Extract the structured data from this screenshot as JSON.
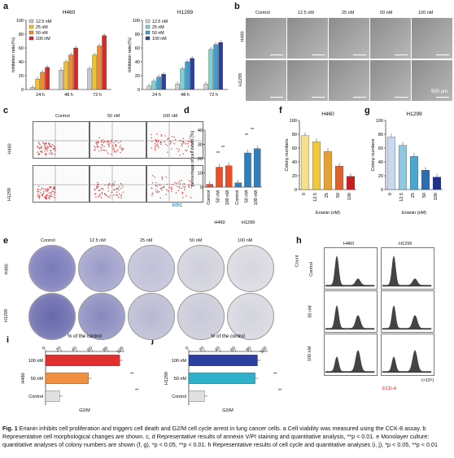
{
  "panels": {
    "a": {
      "label": "a",
      "charts": [
        {
          "title": "H460",
          "ylabel": "Inhibition ratio(%)",
          "yticks": [
            "0",
            "20",
            "40",
            "60",
            "80",
            "100"
          ],
          "legend": [
            "12.5 nM",
            "25 nM",
            "50 nM",
            "100 nM"
          ],
          "xgroups": [
            "24 h",
            "48 h",
            "72 h"
          ]
        },
        {
          "title": "H1299",
          "ylabel": "Inhibition ratio(%)",
          "yticks": [
            "0",
            "20",
            "40",
            "60",
            "80",
            "100"
          ],
          "legend": [
            "12.5 nM",
            "25 nM",
            "50 nM",
            "100 nM"
          ],
          "xgroups": [
            "24 h",
            "48 h",
            "72 h"
          ]
        }
      ]
    },
    "b": {
      "label": "b",
      "cols": [
        "Control",
        "12.5 nM",
        "25 nM",
        "50 nM",
        "100 nM"
      ],
      "rows": [
        "H460",
        "H1299"
      ],
      "scale": "500 μm"
    },
    "c": {
      "label": "c",
      "cols": [
        "Control",
        "50 nM",
        "100 nM"
      ],
      "rows": [
        "H460",
        "H1299"
      ],
      "xaxis": "FITC"
    },
    "d": {
      "label": "d",
      "ylabel": "percentage of cell death (%)",
      "yticks": [
        "0",
        "10",
        "20",
        "30",
        "40"
      ],
      "xticks": [
        "Control",
        "50 nM",
        "100 nM",
        "Control",
        "50 nM",
        "100 nM"
      ],
      "groups": [
        "H460",
        "H1299"
      ],
      "sig": [
        "**",
        "**",
        "**",
        "**"
      ]
    },
    "f": {
      "label": "f",
      "title": "H460",
      "ylabel": "Colony numbers",
      "yticks": [
        "0",
        "20",
        "40",
        "60",
        "80",
        "100"
      ],
      "xticks": [
        "0",
        "12.5",
        "25",
        "50",
        "100"
      ],
      "xlabel": "Erianin (nM)"
    },
    "g": {
      "label": "g",
      "title": "H1299",
      "ylabel": "Colony numbers",
      "yticks": [
        "0",
        "20",
        "40",
        "60",
        "80",
        "100"
      ],
      "xticks": [
        "0",
        "12.5",
        "25",
        "50",
        "100"
      ],
      "xlabel": "Erianin (nM)"
    },
    "e": {
      "label": "e",
      "cols": [
        "Control",
        "12.5 nM",
        "25 nM",
        "50 nM",
        "100 nM"
      ],
      "rows": [
        "H460",
        "H1299"
      ]
    },
    "h": {
      "label": "h",
      "cols": [
        "H460",
        "H1299"
      ],
      "rows": [
        "Control",
        "50 nM",
        "100 nM"
      ],
      "ylabel": "Count",
      "xlabel": "ECD-A",
      "unit": "(×10⁶)"
    },
    "i": {
      "label": "i",
      "title": "% of the control",
      "row_group": "H460",
      "xlabel": "G2/M",
      "bars": [
        "100 nM",
        "50 nM",
        "Control"
      ],
      "xticks": [
        "0",
        "20",
        "40",
        "60",
        "80",
        "100"
      ],
      "sig": [
        "**",
        "**"
      ]
    },
    "j": {
      "label": "j",
      "title": "% of the control",
      "row_group": "H1299",
      "xlabel": "G2/M",
      "bars": [
        "100 nM",
        "50 nM",
        "Control"
      ],
      "xticks": [
        "0",
        "20",
        "40",
        "60",
        "80",
        "100"
      ],
      "sig": [
        "**",
        "**"
      ]
    }
  },
  "chart_data": [
    {
      "type": "bar",
      "title": "H460",
      "ylabel": "Inhibition ratio(%)",
      "ylim": [
        0,
        100
      ],
      "categories": [
        "24 h",
        "48 h",
        "72 h"
      ],
      "series": [
        {
          "name": "12.5 nM",
          "values": [
            3,
            28,
            30
          ]
        },
        {
          "name": "25 nM",
          "values": [
            15,
            40,
            50
          ]
        },
        {
          "name": "50 nM",
          "values": [
            25,
            50,
            63
          ]
        },
        {
          "name": "100 nM",
          "values": [
            32,
            60,
            78
          ]
        }
      ]
    },
    {
      "type": "bar",
      "title": "H1299",
      "ylabel": "Inhibition ratio(%)",
      "ylim": [
        0,
        100
      ],
      "categories": [
        "24 h",
        "48 h",
        "72 h"
      ],
      "series": [
        {
          "name": "12.5 nM",
          "values": [
            5,
            8,
            8
          ]
        },
        {
          "name": "25 nM",
          "values": [
            12,
            30,
            58
          ]
        },
        {
          "name": "50 nM",
          "values": [
            18,
            40,
            65
          ]
        },
        {
          "name": "100 nM",
          "values": [
            22,
            45,
            68
          ]
        }
      ]
    },
    {
      "type": "bar",
      "ylabel": "percentage of cell death (%)",
      "ylim": [
        0,
        40
      ],
      "categories": [
        "Control",
        "50 nM",
        "100 nM",
        "Control",
        "50 nM",
        "100 nM"
      ],
      "values": [
        2,
        14,
        15,
        3,
        24,
        27
      ]
    },
    {
      "type": "bar",
      "title": "H460",
      "ylabel": "Colony numbers",
      "xlabel": "Erianin (nM)",
      "ylim": [
        0,
        100
      ],
      "categories": [
        "0",
        "12.5",
        "25",
        "50",
        "100"
      ],
      "values": [
        78,
        69,
        55,
        34,
        19
      ]
    },
    {
      "type": "bar",
      "title": "H1299",
      "ylabel": "Colony numbers",
      "xlabel": "Erianin (nM)",
      "ylim": [
        0,
        100
      ],
      "categories": [
        "0",
        "12.5",
        "25",
        "50",
        "100"
      ],
      "values": [
        76,
        64,
        48,
        28,
        18
      ]
    },
    {
      "type": "bar",
      "title": "% of the control",
      "xlabel": "G2/M",
      "xlim": [
        0,
        100
      ],
      "categories": [
        "100 nM",
        "50 nM",
        "Control"
      ],
      "values": [
        95,
        55,
        18
      ]
    },
    {
      "type": "bar",
      "title": "% of the control",
      "xlabel": "G2/M",
      "xlim": [
        0,
        100
      ],
      "categories": [
        "100 nM",
        "50 nM",
        "Control"
      ],
      "values": [
        88,
        85,
        20
      ]
    }
  ],
  "colors": {
    "s1": "#c8c8c8",
    "s2": "#f0c232",
    "s3": "#f08a30",
    "s4": "#d52a2a",
    "h1299_s1": "#d0d0d0",
    "h1299_s2": "#7fd0d0",
    "h1299_s3": "#3ea0cc",
    "h1299_s4": "#2a3fa0",
    "d_h460": "#e8502a",
    "d_h1299": "#2e7fc0",
    "f_bars": [
      "#f6e08a",
      "#f0c840",
      "#e8a030",
      "#e0602a",
      "#c81e1e"
    ],
    "g_bars": [
      "#c8d8ee",
      "#90c6e0",
      "#4aa8d0",
      "#2d6db4",
      "#1f2f8c"
    ],
    "i_bars": [
      "#e03030",
      "#f09040",
      "#e0e0e0"
    ],
    "j_bars": [
      "#2a3fa0",
      "#2db0c8",
      "#e0e0e0"
    ]
  },
  "caption": {
    "fig": "Fig. 1",
    "text": "Erianin inhibits cell proliferation and triggers cell death and G2/M cell cycle arrest in lung cancer cells. a Cell viability was measured using the CCK-8 assay. b Representative cell morphological changes are shown. c, d Representative results of annexin V/PI staining and quantitative analysis, **p < 0.01. e Monolayer culture: quantitative analyses of colony numbers are shown (f, g), *p < 0.05, **p < 0.01. h Representative results of cell cycle and quantitative analyses (i, j), *p < 0.05, **p < 0.01"
  }
}
